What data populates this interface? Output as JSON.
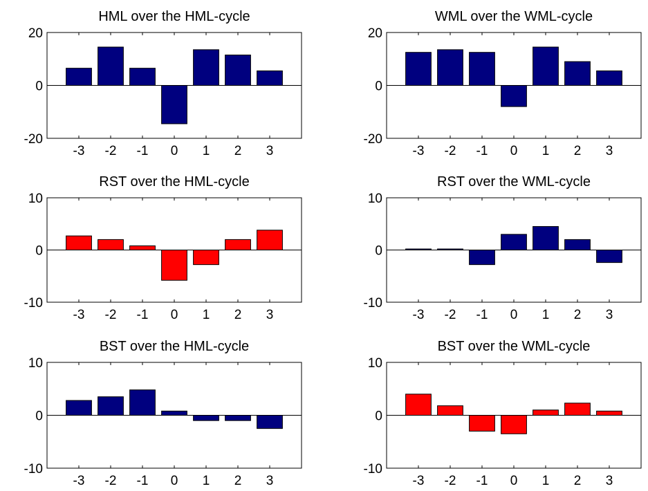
{
  "chart_data": [
    {
      "type": "bar",
      "title": "HML over the HML-cycle",
      "categories": [
        "-3",
        "-2",
        "-1",
        "0",
        "1",
        "2",
        "3"
      ],
      "values": [
        6.5,
        14.5,
        6.5,
        -14.5,
        13.5,
        11.5,
        5.5
      ],
      "ylim": [
        -20,
        20
      ],
      "yticks": [
        "-20",
        "0",
        "20"
      ],
      "bar_color": "#00007f",
      "grid": false
    },
    {
      "type": "bar",
      "title": "WML over the WML-cycle",
      "categories": [
        "-3",
        "-2",
        "-1",
        "0",
        "1",
        "2",
        "3"
      ],
      "values": [
        12.5,
        13.5,
        12.5,
        -8.0,
        14.5,
        9.0,
        5.5
      ],
      "ylim": [
        -20,
        20
      ],
      "yticks": [
        "-20",
        "0",
        "20"
      ],
      "bar_color": "#00007f",
      "grid": false
    },
    {
      "type": "bar",
      "title": "RST over the HML-cycle",
      "categories": [
        "-3",
        "-2",
        "-1",
        "0",
        "1",
        "2",
        "3"
      ],
      "values": [
        2.7,
        2.0,
        0.8,
        -5.8,
        -2.8,
        2.0,
        3.8
      ],
      "ylim": [
        -10,
        10
      ],
      "yticks": [
        "-10",
        "0",
        "10"
      ],
      "bar_color": "#ff0000",
      "grid": false
    },
    {
      "type": "bar",
      "title": "RST over the WML-cycle",
      "categories": [
        "-3",
        "-2",
        "-1",
        "0",
        "1",
        "2",
        "3"
      ],
      "values": [
        0.2,
        0.2,
        -2.8,
        3.0,
        4.5,
        2.0,
        -2.4
      ],
      "ylim": [
        -10,
        10
      ],
      "yticks": [
        "-10",
        "0",
        "10"
      ],
      "bar_color": "#00007f",
      "grid": false
    },
    {
      "type": "bar",
      "title": "BST over the HML-cycle",
      "categories": [
        "-3",
        "-2",
        "-1",
        "0",
        "1",
        "2",
        "3"
      ],
      "values": [
        2.8,
        3.5,
        4.8,
        0.8,
        -1.0,
        -1.0,
        -2.5
      ],
      "ylim": [
        -10,
        10
      ],
      "yticks": [
        "-10",
        "0",
        "10"
      ],
      "bar_color": "#00007f",
      "grid": false
    },
    {
      "type": "bar",
      "title": "BST over the WML-cycle",
      "categories": [
        "-3",
        "-2",
        "-1",
        "0",
        "1",
        "2",
        "3"
      ],
      "values": [
        4.0,
        1.8,
        -3.0,
        -3.5,
        1.0,
        2.3,
        0.8
      ],
      "ylim": [
        -10,
        10
      ],
      "yticks": [
        "-10",
        "0",
        "10"
      ],
      "bar_color": "#ff0000",
      "grid": false
    }
  ]
}
